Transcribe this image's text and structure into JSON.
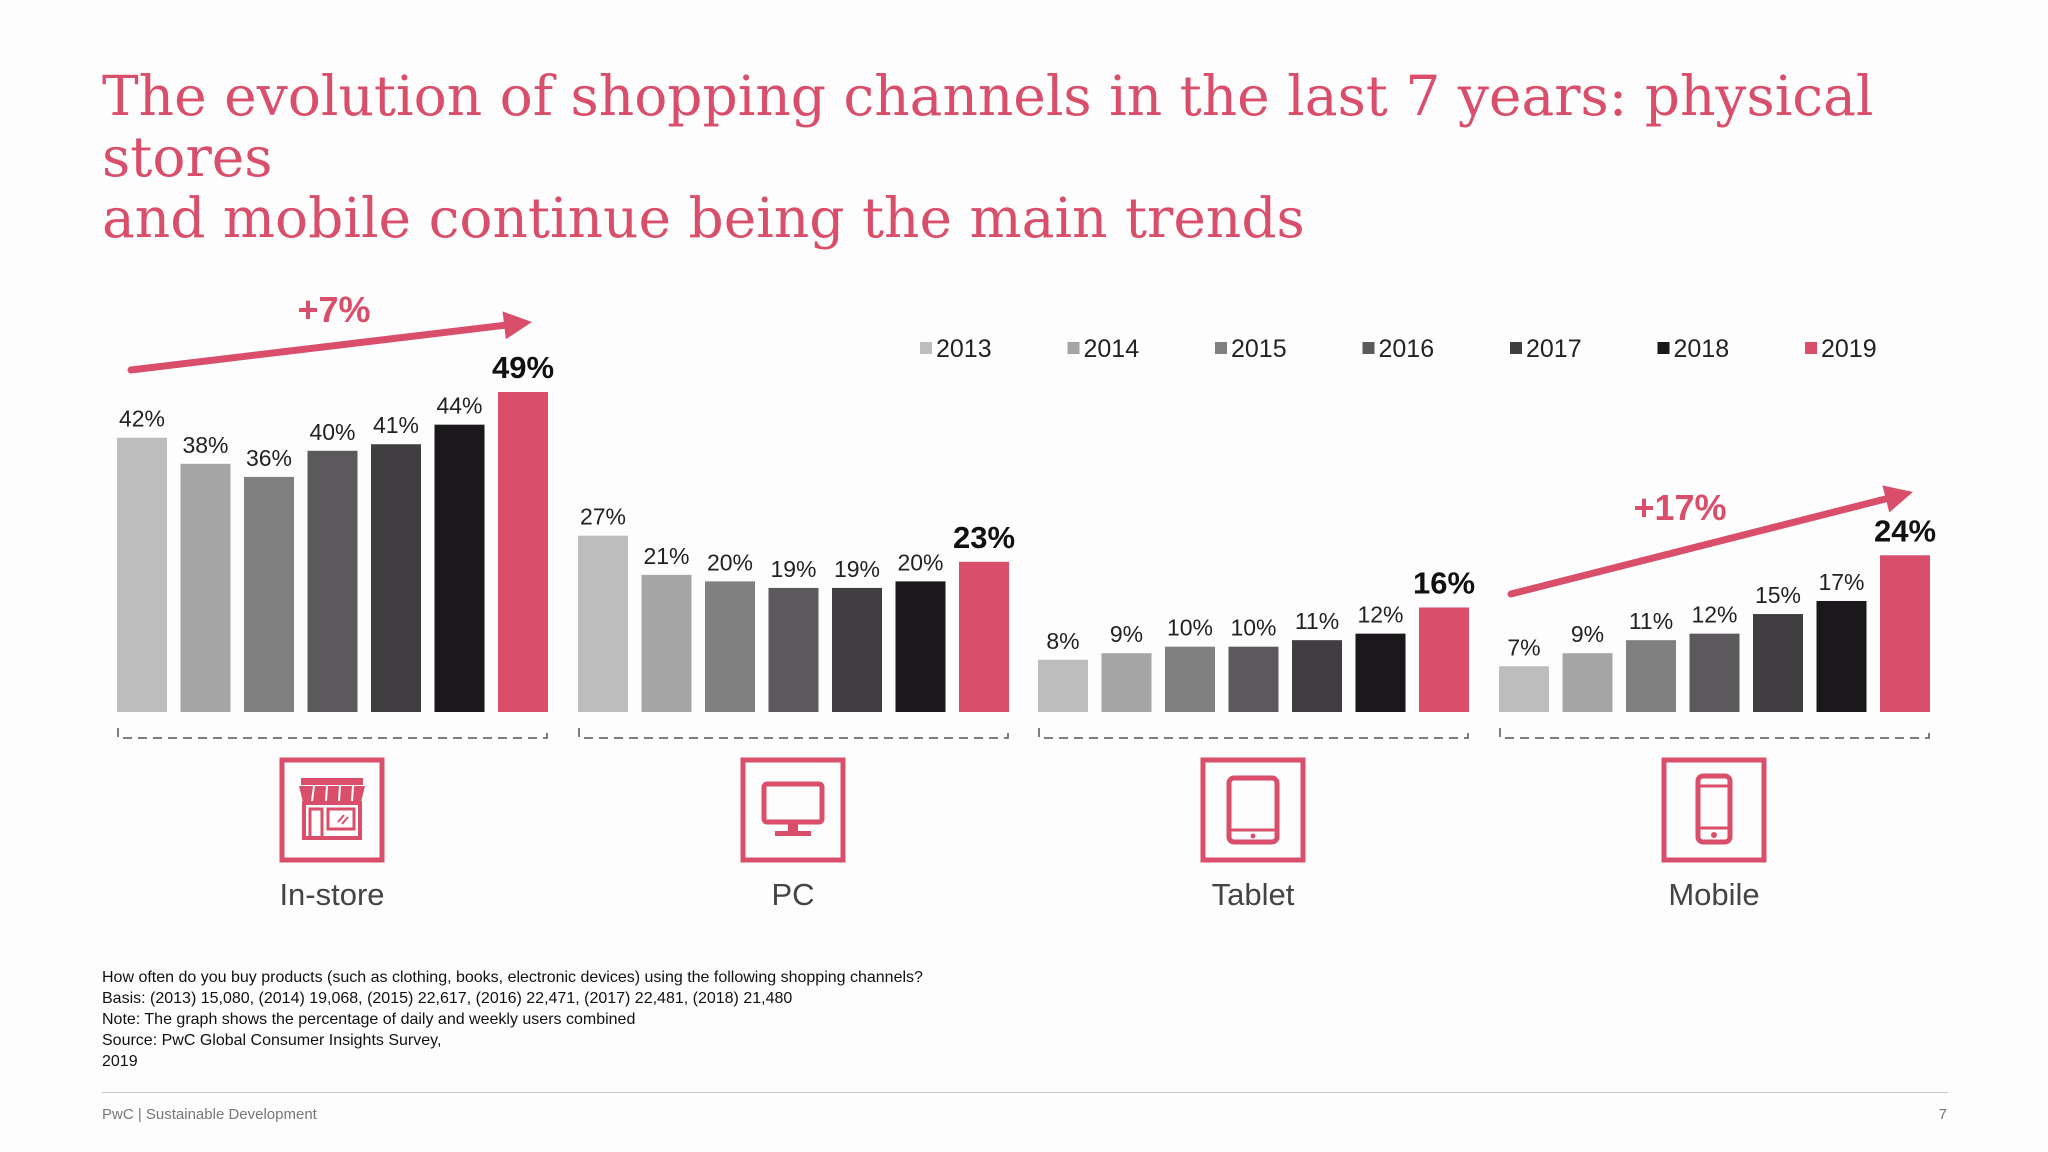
{
  "title": {
    "line1": "The evolution of shopping channels in the last 7 years: physical stores",
    "line2": "and mobile continue being the main trends"
  },
  "colors": {
    "accent": "#d94f6b",
    "years": [
      "#bdbdbe",
      "#a5a5a6",
      "#818081",
      "#5b595b",
      "#403e41",
      "#1a181b",
      "#d94f6b"
    ]
  },
  "chart_data": {
    "type": "bar",
    "categories": [
      "In-store",
      "PC",
      "Tablet",
      "Mobile"
    ],
    "icons": [
      "store-icon",
      "pc-icon",
      "tablet-icon",
      "mobile-icon"
    ],
    "series": [
      {
        "name": "2013",
        "values": [
          42,
          27,
          8,
          7
        ]
      },
      {
        "name": "2014",
        "values": [
          38,
          21,
          9,
          9
        ]
      },
      {
        "name": "2015",
        "values": [
          36,
          20,
          10,
          11
        ]
      },
      {
        "name": "2016",
        "values": [
          40,
          19,
          10,
          12
        ]
      },
      {
        "name": "2017",
        "values": [
          41,
          19,
          11,
          15
        ]
      },
      {
        "name": "2018",
        "values": [
          44,
          20,
          12,
          17
        ]
      },
      {
        "name": "2019",
        "values": [
          49,
          23,
          16,
          24
        ]
      }
    ],
    "value_suffix": "%",
    "highlight_series": "2019",
    "legend_position": "top-right",
    "annotations": [
      {
        "category": "In-store",
        "text": "+7%"
      },
      {
        "category": "Mobile",
        "text": "+17%"
      }
    ],
    "ylim": [
      0,
      49
    ],
    "grid": false
  },
  "notes": [
    "How often do you buy products (such as clothing, books, electronic devices) using the following shopping channels?",
    "Basis: (2013) 15,080, (2014) 19,068, (2015) 22,617, (2016) 22,471, (2017) 22,481, (2018) 21,480",
    "Note: The graph shows the percentage of daily and weekly users combined",
    "Source: PwC Global Consumer Insights Survey,",
    "2019"
  ],
  "footer": {
    "left": "PwC | Sustainable Development",
    "page_number": "7"
  }
}
